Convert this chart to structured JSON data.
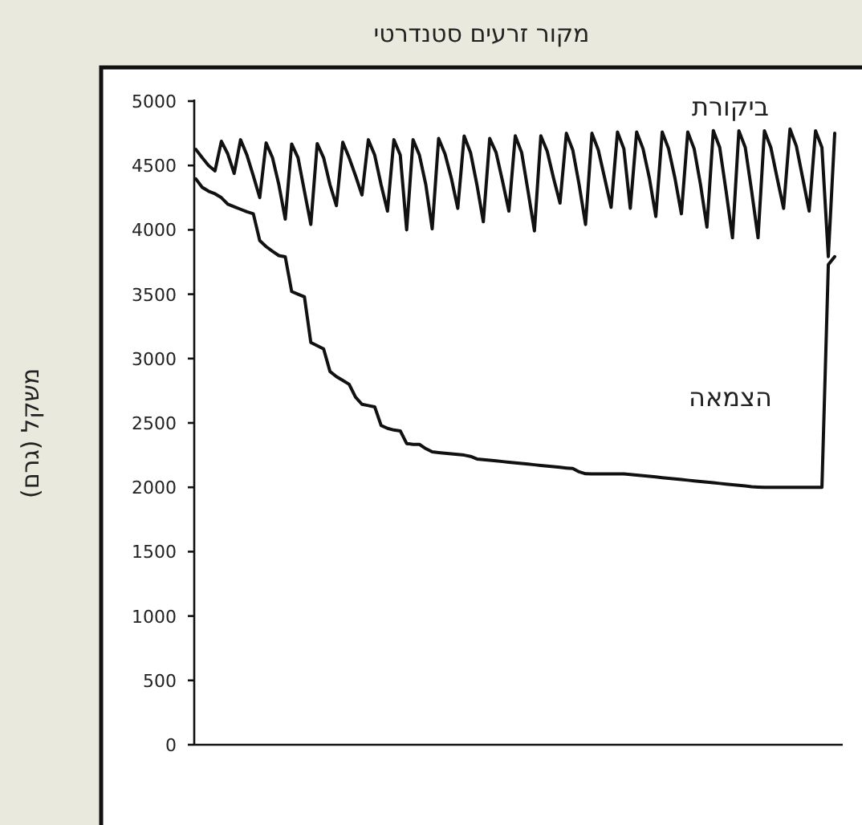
{
  "chart_data": {
    "type": "line",
    "title": "מקור זרעים סטנדרטי",
    "ylabel": "משקל (גרם)",
    "ylim": [
      0,
      5000
    ],
    "yticks": [
      0,
      500,
      1000,
      1500,
      2000,
      2500,
      3000,
      3500,
      4000,
      4500,
      5000
    ],
    "tick_labels": "y",
    "grid": false,
    "legend": false,
    "marker": "none",
    "line_style": "solid",
    "categories": [
      null,
      null,
      null,
      null,
      null,
      null,
      null,
      null,
      null,
      null,
      null,
      null,
      null,
      null,
      null,
      null,
      null,
      null,
      null,
      null,
      null,
      null,
      null,
      null,
      null,
      null,
      null,
      null,
      null,
      null,
      null,
      null,
      null,
      null,
      null,
      null,
      null,
      null,
      null,
      null,
      null,
      null,
      null,
      null,
      null,
      null,
      null,
      null,
      null,
      null,
      null,
      null,
      null,
      null,
      null,
      null,
      null,
      null,
      null,
      null,
      null,
      null,
      null,
      null,
      null,
      null,
      null,
      null,
      null,
      null,
      null,
      null,
      null,
      null,
      null,
      null,
      null,
      null,
      null,
      null,
      null,
      null,
      null,
      null,
      null,
      null,
      null,
      null,
      null,
      null,
      null,
      null,
      null,
      null,
      null,
      null,
      null,
      null,
      null,
      null,
      null
    ],
    "series": [
      {
        "name": "ביקורת",
        "color": "#111111",
        "values": [
          4625,
          4560,
          4500,
          4458,
          4688,
          4590,
          4438,
          4700,
          4580,
          4420,
          4250,
          4675,
          4560,
          4350,
          4083,
          4667,
          4560,
          4300,
          4042,
          4670,
          4560,
          4350,
          4188,
          4680,
          4560,
          4420,
          4271,
          4700,
          4580,
          4350,
          4146,
          4700,
          4580,
          4000,
          4700,
          4580,
          4350,
          4008,
          4710,
          4590,
          4400,
          4167,
          4729,
          4600,
          4350,
          4063,
          4710,
          4600,
          4380,
          4146,
          4730,
          4600,
          4300,
          3992,
          4730,
          4610,
          4400,
          4208,
          4750,
          4620,
          4350,
          4042,
          4750,
          4620,
          4400,
          4175,
          4760,
          4630,
          4167,
          4760,
          4630,
          4400,
          4104,
          4760,
          4630,
          4400,
          4125,
          4760,
          4630,
          4350,
          4021,
          4771,
          4640,
          4300,
          3938,
          4770,
          4640,
          4300,
          3938,
          4770,
          4640,
          4400,
          4167,
          4783,
          4650,
          4400,
          4146,
          4770,
          4640,
          3792,
          4750
        ]
      },
      {
        "name": "הצמאה",
        "color": "#111111",
        "values": [
          4396,
          4330,
          4300,
          4280,
          4250,
          4200,
          4180,
          4160,
          4140,
          4125,
          3917,
          3870,
          3833,
          3800,
          3790,
          3521,
          3500,
          3479,
          3125,
          3100,
          3075,
          2900,
          2860,
          2830,
          2800,
          2700,
          2645,
          2635,
          2625,
          2480,
          2458,
          2445,
          2438,
          2340,
          2333,
          2333,
          2300,
          2275,
          2270,
          2265,
          2260,
          2255,
          2250,
          2240,
          2220,
          2215,
          2210,
          2205,
          2200,
          2195,
          2190,
          2185,
          2180,
          2175,
          2170,
          2165,
          2160,
          2155,
          2150,
          2146,
          2120,
          2105,
          2104,
          2104,
          2104,
          2104,
          2104,
          2104,
          2100,
          2095,
          2090,
          2085,
          2080,
          2075,
          2070,
          2065,
          2060,
          2055,
          2050,
          2045,
          2040,
          2035,
          2030,
          2025,
          2020,
          2015,
          2010,
          2005,
          2002,
          2000,
          2000,
          2000,
          2000,
          2000,
          2000,
          2000,
          2000,
          2000,
          2000,
          3729,
          3792
        ]
      }
    ]
  }
}
